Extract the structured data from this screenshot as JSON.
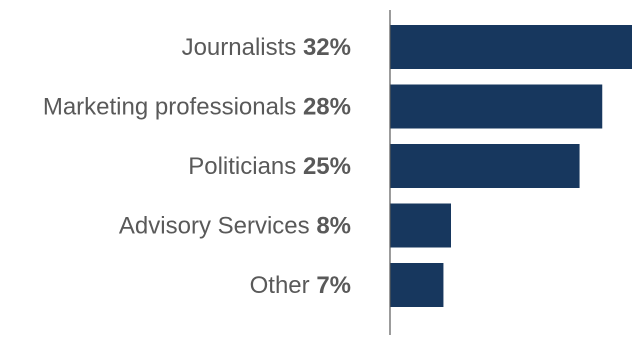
{
  "chart_data": {
    "type": "bar",
    "orientation": "horizontal",
    "categories": [
      "Journalists",
      "Marketing professionals",
      "Politicians",
      "Advisory Services",
      "Other"
    ],
    "values": [
      32,
      28,
      25,
      8,
      7
    ],
    "value_labels": [
      "32%",
      "28%",
      "25%",
      "8%",
      "7%"
    ],
    "unit": "%",
    "title": "",
    "xlabel": "",
    "ylabel": "",
    "xlim": [
      0,
      32
    ],
    "grid": false,
    "legend": "none",
    "colors": {
      "bar": "#17375e",
      "axis": "#595959",
      "label": "#595959"
    }
  }
}
